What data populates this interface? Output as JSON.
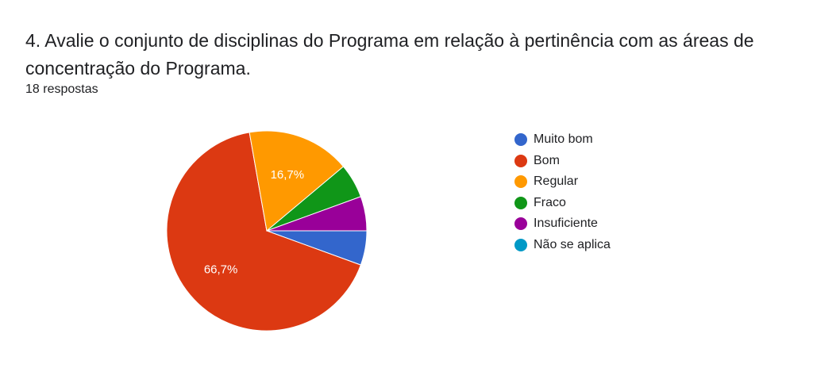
{
  "question": {
    "title": "4. Avalie o conjunto de disciplinas do Programa em relação à pertinência com as áreas de concentração do Programa.",
    "responses": "18 respostas"
  },
  "chart_data": {
    "type": "pie",
    "total": 18,
    "categories": [
      "Muito bom",
      "Bom",
      "Regular",
      "Fraco",
      "Insuficiente",
      "Não se aplica"
    ],
    "values": [
      1,
      12,
      3,
      1,
      1,
      0
    ],
    "slice_labels": [
      "",
      "66,7%",
      "16,7%",
      "",
      "",
      ""
    ],
    "colors": [
      "#3366cc",
      "#dc3912",
      "#ff9900",
      "#109618",
      "#990099",
      "#0099c6"
    ],
    "legend_position": "right"
  }
}
